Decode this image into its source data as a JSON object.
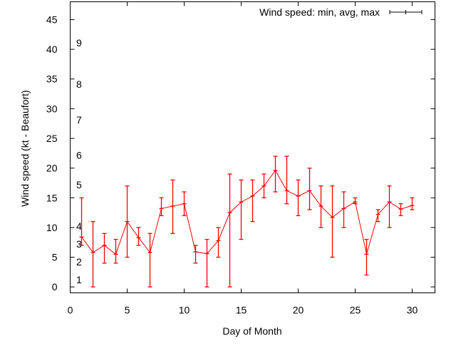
{
  "chart_data": {
    "type": "line",
    "title": "",
    "xlabel": "Day of Month",
    "ylabel": "Wind speed (kt - Beaufort)",
    "xlim": [
      0,
      32
    ],
    "ylim": [
      -1,
      48
    ],
    "xticks": [
      0,
      5,
      10,
      15,
      20,
      25,
      30
    ],
    "yticks": [
      0,
      5,
      10,
      15,
      20,
      25,
      30,
      35,
      40,
      45
    ],
    "grid": false,
    "legend": {
      "position": "top-right",
      "entries": [
        "Wind speed: min, avg, max"
      ]
    },
    "series_color": "#ff0000",
    "legend_color": "#000000",
    "beaufort_labels": [
      {
        "label": "1",
        "kt": 1.2
      },
      {
        "label": "2",
        "kt": 4.2
      },
      {
        "label": "3",
        "kt": 7.2
      },
      {
        "label": "4",
        "kt": 10.2
      },
      {
        "label": "5",
        "kt": 17.2
      },
      {
        "label": "6",
        "kt": 22.2
      },
      {
        "label": "7",
        "kt": 28.1
      },
      {
        "label": "8",
        "kt": 34.1
      },
      {
        "label": "9",
        "kt": 41.1
      }
    ],
    "series": [
      {
        "name": "Wind speed: min, avg, max",
        "x": [
          1,
          2,
          3,
          4,
          5,
          6,
          7,
          8,
          9,
          10,
          11,
          12,
          13,
          14,
          15,
          16,
          17,
          18,
          19,
          20,
          21,
          22,
          23,
          24,
          25,
          26,
          27,
          28,
          29,
          30
        ],
        "avg": [
          8.4,
          5.8,
          7,
          5.5,
          11,
          8.3,
          5.8,
          13.2,
          13.6,
          14,
          5.9,
          5.6,
          7.8,
          12.5,
          14.3,
          15.3,
          17,
          19.6,
          16.2,
          15.3,
          16.2,
          13.6,
          11.7,
          13.2,
          14.3,
          5.5,
          12.2,
          14.3,
          13.1,
          13.7
        ],
        "min": [
          7,
          0,
          4,
          4,
          5,
          7,
          0,
          12,
          9,
          12,
          4,
          0,
          5,
          0,
          8,
          11,
          15,
          16,
          14,
          12,
          13,
          10,
          5,
          10,
          14,
          2,
          11,
          10,
          12,
          13
        ],
        "max": [
          15,
          11,
          9,
          8,
          17,
          10,
          9,
          15,
          18,
          16,
          7,
          8,
          10,
          19,
          18,
          18,
          19,
          22,
          22,
          18,
          20,
          17,
          17,
          16,
          15,
          8,
          13,
          17,
          14,
          15
        ]
      }
    ]
  }
}
